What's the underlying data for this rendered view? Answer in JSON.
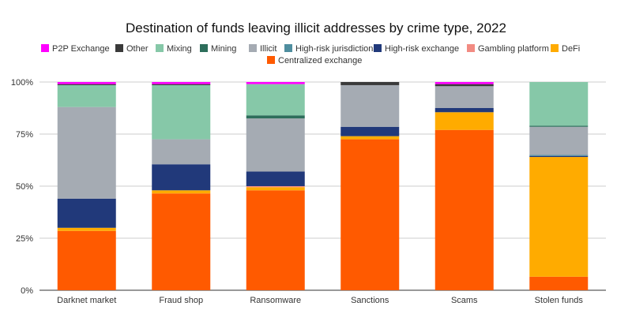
{
  "chart_data": {
    "type": "bar",
    "stacked": true,
    "normalized": true,
    "title": "Destination of funds leaving illicit addresses by crime type, 2022",
    "xlabel": "",
    "ylabel": "",
    "ylim": [
      0,
      100
    ],
    "yticks": [
      "0%",
      "25%",
      "50%",
      "75%",
      "100%"
    ],
    "ytick_values": [
      0,
      25,
      50,
      75,
      100
    ],
    "grid": true,
    "legend_position": "top",
    "categories": [
      "Darknet market",
      "Fraud shop",
      "Ransomware",
      "Sanctions",
      "Scams",
      "Stolen funds"
    ],
    "series": [
      {
        "name": "Centralized exchange",
        "color": "#ff5a00",
        "values": [
          28.5,
          46.5,
          48.0,
          72.5,
          77.0,
          6.5
        ]
      },
      {
        "name": "DeFi",
        "color": "#ffab00",
        "values": [
          1.5,
          1.5,
          1.5,
          1.5,
          8.5,
          57.5
        ]
      },
      {
        "name": "Gambling platform",
        "color": "#f28b82",
        "values": [
          0,
          0,
          0.5,
          0,
          0,
          0
        ]
      },
      {
        "name": "High-risk exchange",
        "color": "#21397a",
        "values": [
          14.0,
          12.5,
          7.0,
          4.5,
          2.0,
          0.5
        ]
      },
      {
        "name": "High-risk jurisdictions",
        "color": "#4f8e9f",
        "values": [
          0,
          0,
          0,
          0,
          0,
          0.5
        ]
      },
      {
        "name": "Illicit",
        "color": "#a5abb3",
        "values": [
          44.0,
          12.0,
          25.5,
          20.0,
          10.5,
          13.5
        ]
      },
      {
        "name": "Mining",
        "color": "#2d6e5b",
        "values": [
          0,
          0,
          1.5,
          0,
          0,
          0.5
        ]
      },
      {
        "name": "Mixing",
        "color": "#86c8a8",
        "values": [
          10.5,
          26.0,
          15.0,
          0,
          0,
          21.0
        ]
      },
      {
        "name": "Other",
        "color": "#3a3a3a",
        "values": [
          0.5,
          0.5,
          0.0,
          1.5,
          1.0,
          0
        ]
      },
      {
        "name": "P2P Exchange",
        "color": "#ff00ff",
        "values": [
          1.0,
          1.0,
          1.0,
          0,
          1.0,
          0
        ]
      }
    ],
    "legend_order": [
      "P2P Exchange",
      "Other",
      "Mixing",
      "Mining",
      "Illicit",
      "High-risk jurisdictions",
      "High-risk exchange",
      "Gambling platform",
      "DeFi",
      "Centralized exchange"
    ]
  }
}
